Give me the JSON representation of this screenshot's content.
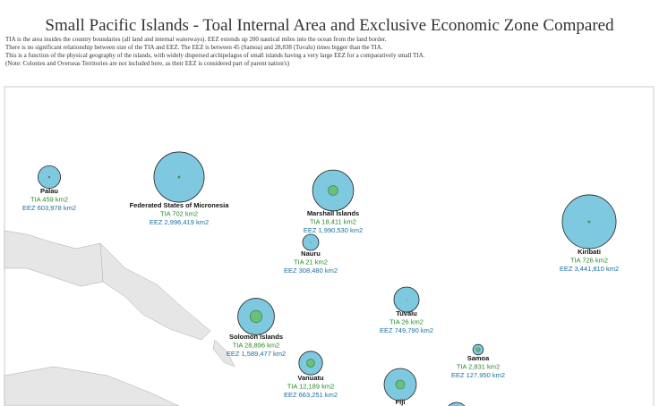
{
  "header": {
    "title": "Small Pacific Islands - Toal Internal Area and Exclusive Economic Zone Compared",
    "lines": [
      "TIA is the area insides the country boundaries (all land and internal waterways). EEZ extends up 200 nautical miles into the ocean from the land border.",
      " There is no significant relationship between size of the TIA and EEZ. The EEZ is between 45 (Samoa) and 28,838 (Tuvalu) times bigger than the TIA.",
      "This is a function of the physical geography of the islands, with widely dispersed archipelagos of small islands having a very large EEZ for a comparatively small TIA.",
      "(Note: Colonies and Overseas Territories are not included here, as their EEZ is considered part of parent nation's)"
    ]
  },
  "islands": [
    {
      "name": "Palau",
      "tia_label": "TIA 459 km2",
      "eez_label": "EEZ 603,978 km2",
      "tia": 459,
      "eez": 603978
    },
    {
      "name": "Federated States of Micronesia",
      "tia_label": "TIA 702 km2",
      "eez_label": "EEZ 2,996,419 km2",
      "tia": 702,
      "eez": 2996419
    },
    {
      "name": "Marshall Islands",
      "tia_label": "TIA 18,411 km2",
      "eez_label": "EEZ 1,990,530 km2",
      "tia": 18411,
      "eez": 1990530
    },
    {
      "name": "Nauru",
      "tia_label": "TIA 21 km2",
      "eez_label": "EEZ 308,480 km2",
      "tia": 21,
      "eez": 308480
    },
    {
      "name": "Kiribati",
      "tia_label": "TIA 726 km2",
      "eez_label": "EEZ 3,441,810 km2",
      "tia": 726,
      "eez": 3441810
    },
    {
      "name": "Tuvalu",
      "tia_label": "TIA 26 km2",
      "eez_label": "EEZ 749,790 km2",
      "tia": 26,
      "eez": 749790
    },
    {
      "name": "Solomon Islands",
      "tia_label": "TIA 28,896 km2",
      "eez_label": "EEZ 1,589,477 km2",
      "tia": 28896,
      "eez": 1589477
    },
    {
      "name": "Samoa",
      "tia_label": "TIA 2,831 km2",
      "eez_label": "EEZ 127,950 km2",
      "tia": 2831,
      "eez": 127950
    },
    {
      "name": "Vanuatu",
      "tia_label": "TIA 12,189 km2",
      "eez_label": "EEZ 663,251 km2",
      "tia": 12189,
      "eez": 663251
    },
    {
      "name": "Fiji"
    }
  ]
}
